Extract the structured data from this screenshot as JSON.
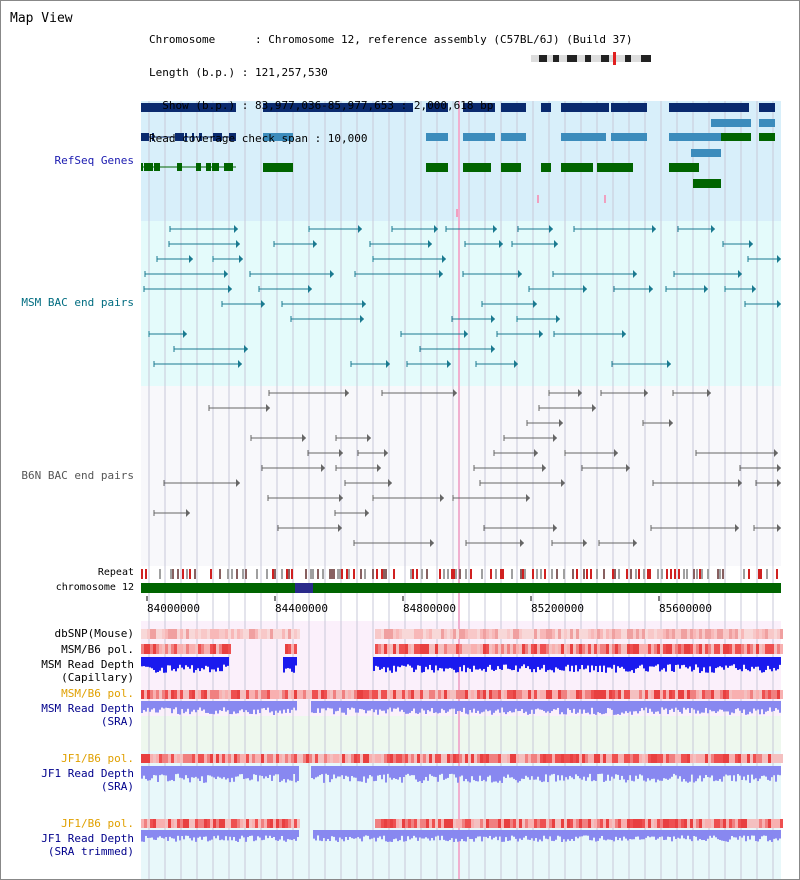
{
  "title": "Map View",
  "header": {
    "lines": [
      "Chromosome      : Chromosome 12, reference assembly (C57BL/6J) (Build 37)",
      "Length (b.p.) : 121,257,530",
      "  Show (b.p.) : 83,977,036-85,977,653 : 2,000,618 bp",
      "Read coverage check span : 10,000"
    ]
  },
  "tracks": {
    "refseq": {
      "label": "RefSeq Genes",
      "color": "#00008b",
      "bg": "#d8effa"
    },
    "msm_bac": {
      "label": "MSM BAC end pairs",
      "color": "#006c80",
      "bg": "#e4fbfb"
    },
    "b6n_bac": {
      "label": "B6N BAC end pairs",
      "color": "#555555",
      "bg": "#f8f8fb"
    },
    "repeat": {
      "label": "Repeat"
    },
    "chromosome": {
      "label": "chromosome 12"
    },
    "dbsnp": {
      "label": "dbSNP(Mouse)"
    },
    "msm_b6_pol": {
      "label": "MSM/B6 pol."
    },
    "msm_read_depth_cap": {
      "label1": "MSM Read Depth",
      "label2": "(Capillary)"
    },
    "msm_b6_pol_sra": {
      "label": "MSM/B6 pol.",
      "color": "#e0a000"
    },
    "msm_read_depth_sra": {
      "label1": "MSM Read Depth",
      "label2": "(SRA)",
      "color": "#00008b"
    },
    "jf1_b6_pol": {
      "label": "JF1/B6 pol.",
      "color": "#e0a000"
    },
    "jf1_read_depth": {
      "label1": "JF1 Read Depth",
      "label2": "(SRA)",
      "color": "#00008b"
    },
    "jf1_b6_pol_trim": {
      "label": "JF1/B6 pol.",
      "color": "#e0a000"
    },
    "jf1_read_depth_trim": {
      "label1": "JF1 Read Depth",
      "label2": "(SRA trimmed)",
      "color": "#00008b"
    }
  },
  "axis": {
    "ticks": [
      "84000000",
      "84400000",
      "84800000",
      "85200000",
      "85600000"
    ]
  },
  "colors": {
    "gene_dark": "#0a2a6e",
    "gene_mid": "#3c8cbc",
    "gene_green": "#006400",
    "chrom_green": "#006400",
    "read_depth_blue": "#1a1aee",
    "read_depth_light": "#8888f0",
    "snp_red": "#ee2222",
    "snp_pink": "#f8b0b0"
  }
}
